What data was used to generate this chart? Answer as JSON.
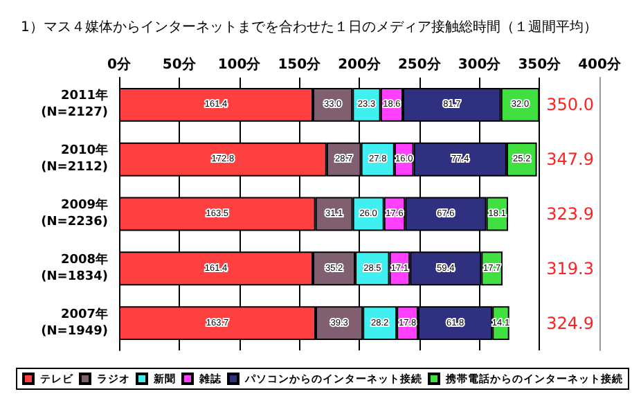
{
  "chart_data": {
    "type": "bar",
    "orientation": "horizontal",
    "stacked": true,
    "title": "1）マス４媒体からインターネットまでを合わせた１日のメディア接触総時間（１週間平均）",
    "categories": [
      "2011年\n(N=2127)",
      "2010年\n(N=2112)",
      "2009年\n(N=2236)",
      "2008年\n(N=1834)",
      "2007年\n(N=1949)"
    ],
    "series": [
      {
        "name": "テレビ",
        "color": "#ff4040",
        "values": [
          161.4,
          172.8,
          163.5,
          161.4,
          163.7
        ]
      },
      {
        "name": "ラジオ",
        "color": "#806070",
        "values": [
          33.0,
          28.7,
          31.1,
          35.2,
          39.3
        ]
      },
      {
        "name": "新聞",
        "color": "#40f0f0",
        "values": [
          23.3,
          27.8,
          26.0,
          28.5,
          28.2
        ]
      },
      {
        "name": "雑誌",
        "color": "#ff40ff",
        "values": [
          18.6,
          16.0,
          17.6,
          17.1,
          17.8
        ]
      },
      {
        "name": "パソコンからのインターネット接続",
        "color": "#303080",
        "values": [
          81.7,
          77.4,
          67.6,
          59.4,
          61.8
        ]
      },
      {
        "name": "携帯電話からのインターネット接続",
        "color": "#40e040",
        "values": [
          32.0,
          25.2,
          18.1,
          17.7,
          14.1
        ]
      }
    ],
    "totals": [
      "350.0",
      "347.9",
      "323.9",
      "319.3",
      "324.9"
    ],
    "xlim": [
      0,
      400
    ],
    "xticks": [
      {
        "value": 0,
        "label": "0分"
      },
      {
        "value": 50,
        "label": "50分"
      },
      {
        "value": 100,
        "label": "100分"
      },
      {
        "value": 150,
        "label": "150分"
      },
      {
        "value": 200,
        "label": "200分"
      },
      {
        "value": 250,
        "label": "250分"
      },
      {
        "value": 300,
        "label": "300分"
      },
      {
        "value": 350,
        "label": "350分"
      },
      {
        "value": 400,
        "label": "400分"
      }
    ],
    "value_labels": [
      [
        "161.4",
        "172.8",
        "163.5",
        "161.4",
        "163.7"
      ],
      [
        "33.0",
        "28.7",
        "31.1",
        "35.2",
        "39.3"
      ],
      [
        "23.3",
        "27.8",
        "26.0",
        "28.5",
        "28.2"
      ],
      [
        "18.6",
        "16.0",
        "17.6",
        "17.1",
        "17.8"
      ],
      [
        "81.7",
        "77.4",
        "67.6",
        "59.4",
        "61.8"
      ],
      [
        "32.0",
        "25.2",
        "18.1",
        "17.7",
        "14.1"
      ]
    ],
    "grid": "x",
    "legend": "bottom"
  }
}
